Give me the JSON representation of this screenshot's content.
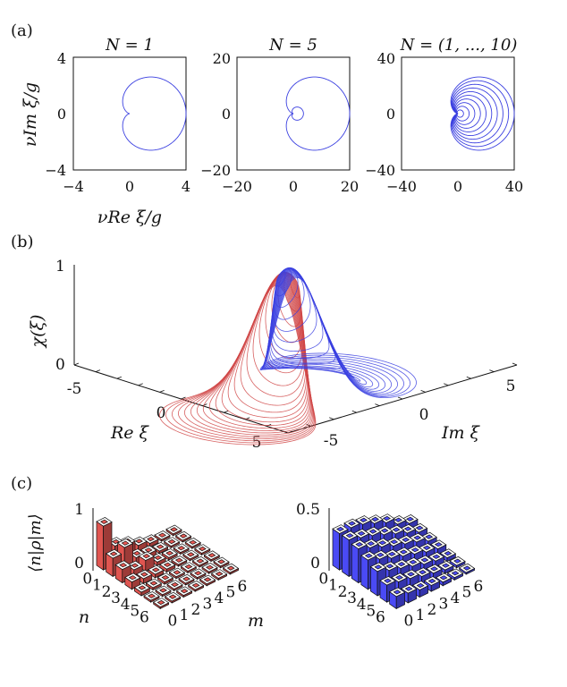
{
  "panel_labels": [
    "(a)",
    "(b)",
    "(c)"
  ],
  "colors": {
    "red": "#d04545",
    "blue": "#3a3fe0",
    "red_bar": "#e05550",
    "blue_bar": "#4a4af5",
    "axis": "#111111"
  },
  "chart_data": [
    {
      "type": "line",
      "panel": "a1",
      "title": "N = 1",
      "xlabel": "νRe ξ/g",
      "ylabel": "νIm ξ/g",
      "xlim": [
        -4,
        4
      ],
      "ylim": [
        -4,
        4
      ],
      "xticks": [
        "−4",
        "0",
        "4"
      ],
      "yticks": [
        "4",
        "0",
        "−4"
      ],
      "curve": "cardioid",
      "Ns": [
        1
      ],
      "scale": 4
    },
    {
      "type": "line",
      "panel": "a2",
      "title": "N = 5",
      "xlabel": "",
      "ylabel": "",
      "xlim": [
        -20,
        20
      ],
      "ylim": [
        -20,
        20
      ],
      "xticks": [
        "−20",
        "0",
        "20"
      ],
      "yticks": [
        "20",
        "0",
        "−20"
      ],
      "curve": "cardioid",
      "Ns": [
        1,
        5
      ],
      "scale": 20
    },
    {
      "type": "line",
      "panel": "a3",
      "title": "N = (1, ..., 10)",
      "xlabel": "",
      "ylabel": "",
      "xlim": [
        -40,
        40
      ],
      "ylim": [
        -40,
        40
      ],
      "xticks": [
        "−40",
        "0",
        "40"
      ],
      "yticks": [
        "40",
        "0",
        "−40"
      ],
      "curve": "cardioid",
      "Ns": [
        1,
        2,
        3,
        4,
        5,
        6,
        7,
        8,
        9,
        10
      ],
      "scale": 40
    },
    {
      "type": "line",
      "panel": "b",
      "title": "",
      "zlabel": "χ(ξ)",
      "xlabel": "Re ξ",
      "ylabel": "Im ξ",
      "zticks": [
        "1",
        "0"
      ],
      "xticks": [
        "-5",
        "0",
        "5"
      ],
      "yticks": [
        "-5",
        "0",
        "5"
      ],
      "series": [
        {
          "name": "red",
          "description": "slices along Re ξ"
        },
        {
          "name": "blue",
          "description": "slices along Im ξ"
        }
      ],
      "rings": 22
    },
    {
      "type": "bar",
      "panel": "c1",
      "zticks": [
        "1",
        "0"
      ],
      "zlabel": "⟨n|ρ|m⟩",
      "xlabel": "n",
      "ylabel": "m",
      "n_ticks": [
        "0",
        "1",
        "2",
        "3",
        "4",
        "5",
        "6"
      ],
      "m_ticks": [
        "0",
        "1",
        "2",
        "3",
        "4",
        "5",
        "6"
      ],
      "values": [
        [
          0.72,
          0.3,
          0.22,
          0.12,
          0.06,
          0.03,
          0.01
        ],
        [
          0.3,
          0.38,
          0.12,
          0.08,
          0.04,
          0.02,
          0.01
        ],
        [
          0.22,
          0.12,
          0.18,
          0.06,
          0.04,
          0.02,
          0.01
        ],
        [
          0.12,
          0.08,
          0.06,
          0.05,
          0.03,
          0.02,
          0.01
        ],
        [
          0.06,
          0.04,
          0.04,
          0.03,
          0.02,
          0.01,
          0.01
        ],
        [
          0.03,
          0.02,
          0.02,
          0.02,
          0.01,
          0.01,
          0.01
        ],
        [
          0.01,
          0.01,
          0.01,
          0.01,
          0.01,
          0.01,
          0.01
        ]
      ]
    },
    {
      "type": "bar",
      "panel": "c2",
      "zticks": [
        "0.5",
        "0"
      ],
      "zlabel": "",
      "xlabel": "",
      "ylabel": "",
      "n_ticks": [
        "0",
        "1",
        "2",
        "3",
        "4",
        "5",
        "6"
      ],
      "m_ticks": [
        "0",
        "1",
        "2",
        "3",
        "4",
        "5",
        "6"
      ],
      "values": [
        [
          0.3,
          0.3,
          0.28,
          0.24,
          0.2,
          0.14,
          0.1
        ],
        [
          0.3,
          0.27,
          0.24,
          0.2,
          0.16,
          0.12,
          0.08
        ],
        [
          0.28,
          0.24,
          0.2,
          0.16,
          0.13,
          0.1,
          0.06
        ],
        [
          0.24,
          0.2,
          0.16,
          0.13,
          0.1,
          0.07,
          0.05
        ],
        [
          0.2,
          0.16,
          0.13,
          0.1,
          0.07,
          0.05,
          0.03
        ],
        [
          0.14,
          0.12,
          0.1,
          0.07,
          0.05,
          0.03,
          0.02
        ],
        [
          0.1,
          0.08,
          0.06,
          0.05,
          0.03,
          0.02,
          0.01
        ]
      ]
    }
  ]
}
